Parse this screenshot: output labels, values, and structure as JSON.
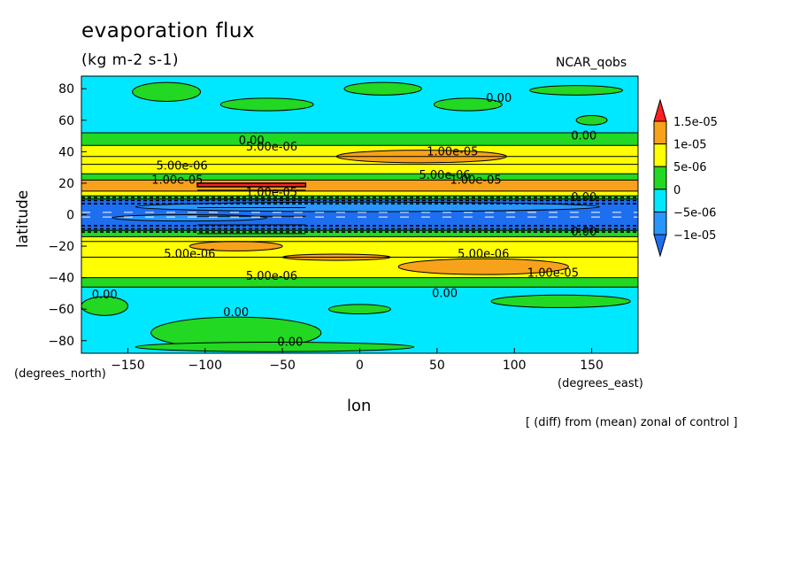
{
  "header": {
    "title": "evaporation flux",
    "units": "(kg m-2 s-1)",
    "model": "NCAR_qobs"
  },
  "footer": {
    "note": "[ (diff) from (mean) zonal of control ]"
  },
  "chart_data": {
    "type": "heatmap",
    "title": "evaporation flux",
    "subtitle": "(kg m-2 s-1)",
    "xlabel": "lon",
    "ylabel": "latitude",
    "x_unit_label": "(degrees_east)",
    "y_unit_label": "(degrees_north)",
    "xlim": [
      -180,
      180
    ],
    "ylim": [
      -88,
      88
    ],
    "x_ticks": [
      -150,
      -100,
      -50,
      0,
      50,
      100,
      150
    ],
    "y_ticks": [
      -80,
      -60,
      -40,
      -20,
      0,
      20,
      40,
      60,
      80
    ],
    "grid": false,
    "colorbar": {
      "placement": "right",
      "tick_labels": [
        "1.5e-05",
        "1e-05",
        "5e-06",
        "0",
        "-5e-06",
        "-1e-05"
      ],
      "levels": [
        {
          "lo": -1.5e-05,
          "hi": -1e-05,
          "color": "#1e6ef0"
        },
        {
          "lo": -1e-05,
          "hi": -5e-06,
          "color": "#2896ff"
        },
        {
          "lo": -5e-06,
          "hi": 0,
          "color": "#00e8ff"
        },
        {
          "lo": 0,
          "hi": 5e-06,
          "color": "#22d822"
        },
        {
          "lo": 5e-06,
          "hi": 1e-05,
          "color": "#ffff00"
        },
        {
          "lo": 1e-05,
          "hi": 1.5e-05,
          "color": "#f7a21a"
        },
        {
          "lo": 1.5e-05,
          "hi": 2e-05,
          "color": "#ff2020"
        }
      ]
    },
    "bands": [
      {
        "lat0": 88,
        "lat1": 52,
        "value": -2e-06
      },
      {
        "lat0": 52,
        "lat1": 44,
        "value": 2e-06
      },
      {
        "lat0": 44,
        "lat1": 37,
        "value": 7e-06
      },
      {
        "lat0": 37,
        "lat1": 32,
        "value": 7e-06
      },
      {
        "lat0": 32,
        "lat1": 26,
        "value": 7e-06
      },
      {
        "lat0": 26,
        "lat1": 22,
        "value": 2e-06
      },
      {
        "lat0": 22,
        "lat1": 15,
        "value": 1.2e-05
      },
      {
        "lat0": 15,
        "lat1": 12,
        "value": 7e-06
      },
      {
        "lat0": 12,
        "lat1": 10,
        "value": 2e-06
      },
      {
        "lat0": 10,
        "lat1": -10,
        "value": -1.2e-05
      },
      {
        "lat0": -10,
        "lat1": -14,
        "value": 2e-06
      },
      {
        "lat0": -14,
        "lat1": -17,
        "value": 7e-06
      },
      {
        "lat0": -17,
        "lat1": -27,
        "value": 7e-06
      },
      {
        "lat0": -27,
        "lat1": -40,
        "value": 7e-06
      },
      {
        "lat0": -40,
        "lat1": -46,
        "value": 2e-06
      },
      {
        "lat0": -46,
        "lat1": -88,
        "value": -2e-06
      }
    ],
    "blobs": [
      {
        "lon": -125,
        "lat": 78,
        "rlon": 22,
        "rlat": 6,
        "value": 2e-06
      },
      {
        "lon": -60,
        "lat": 70,
        "rlon": 30,
        "rlat": 4,
        "value": 2e-06
      },
      {
        "lon": 15,
        "lat": 80,
        "rlon": 25,
        "rlat": 4,
        "value": 2e-06
      },
      {
        "lon": 70,
        "lat": 70,
        "rlon": 22,
        "rlat": 4,
        "value": 2e-06
      },
      {
        "lon": 140,
        "lat": 79,
        "rlon": 30,
        "rlat": 3,
        "value": 2e-06
      },
      {
        "lon": 150,
        "lat": 60,
        "rlon": 10,
        "rlat": 3,
        "value": 2e-06
      },
      {
        "lon": 40,
        "lat": 37,
        "rlon": 55,
        "rlat": 4,
        "value": 1.2e-05
      },
      {
        "lon": 5,
        "lat": 5,
        "rlon": 150,
        "rlat": 3,
        "value": -7e-06
      },
      {
        "lon": -110,
        "lat": -2,
        "rlon": 50,
        "rlat": 2,
        "value": -7e-06
      },
      {
        "lon": -80,
        "lat": -20,
        "rlon": 30,
        "rlat": 3,
        "value": 1.2e-05
      },
      {
        "lon": -15,
        "lat": -27,
        "rlon": 35,
        "rlat": 2,
        "value": 1.2e-05
      },
      {
        "lon": 80,
        "lat": -33,
        "rlon": 55,
        "rlat": 5,
        "value": 1.2e-05
      },
      {
        "lon": -80,
        "lat": -75,
        "rlon": 55,
        "rlat": 10,
        "value": 2e-06
      },
      {
        "lon": -165,
        "lat": -58,
        "rlon": 15,
        "rlat": 6,
        "value": 2e-06
      },
      {
        "lon": 0,
        "lat": -60,
        "rlon": 20,
        "rlat": 3,
        "value": 2e-06
      },
      {
        "lon": 130,
        "lat": -55,
        "rlon": 45,
        "rlat": 4,
        "value": 2e-06
      },
      {
        "lon": -55,
        "lat": -84,
        "rlon": 90,
        "rlat": 3,
        "value": 2e-06
      }
    ],
    "anomaly": {
      "lon0": -105,
      "lon1": -35,
      "lat0": 20,
      "lat1": -12,
      "value": 1.6e-05
    },
    "contour_labels": [
      {
        "lon": 90,
        "lat": 74,
        "text": "0.00"
      },
      {
        "lon": 145,
        "lat": 50,
        "text": "0.00"
      },
      {
        "lon": -70,
        "lat": 47,
        "text": "0.00"
      },
      {
        "lon": -57,
        "lat": 43,
        "text": "5.00e-06"
      },
      {
        "lon": -115,
        "lat": 31,
        "text": "5.00e-06"
      },
      {
        "lon": -118,
        "lat": 22,
        "text": "1.00e-05"
      },
      {
        "lon": 60,
        "lat": 40,
        "text": "1.00e-05"
      },
      {
        "lon": 55,
        "lat": 25,
        "text": "5.00e-06"
      },
      {
        "lon": 75,
        "lat": 22,
        "text": "1.00e-05"
      },
      {
        "lon": -57,
        "lat": 14,
        "text": "1.00e-05"
      },
      {
        "lon": 145,
        "lat": 11,
        "text": "0.00"
      },
      {
        "lon": 145,
        "lat": -11,
        "text": "0.00"
      },
      {
        "lon": -110,
        "lat": -25,
        "text": "5.00e-06"
      },
      {
        "lon": 80,
        "lat": -25,
        "text": "5.00e-06"
      },
      {
        "lon": 125,
        "lat": -37,
        "text": "1.00e-05"
      },
      {
        "lon": -57,
        "lat": -39,
        "text": "5.00e-06"
      },
      {
        "lon": 55,
        "lat": -50,
        "text": "0.00"
      },
      {
        "lon": -165,
        "lat": -51,
        "text": "0.00"
      },
      {
        "lon": -80,
        "lat": -62,
        "text": "0.00"
      },
      {
        "lon": -45,
        "lat": -81,
        "text": "0.00"
      }
    ]
  }
}
